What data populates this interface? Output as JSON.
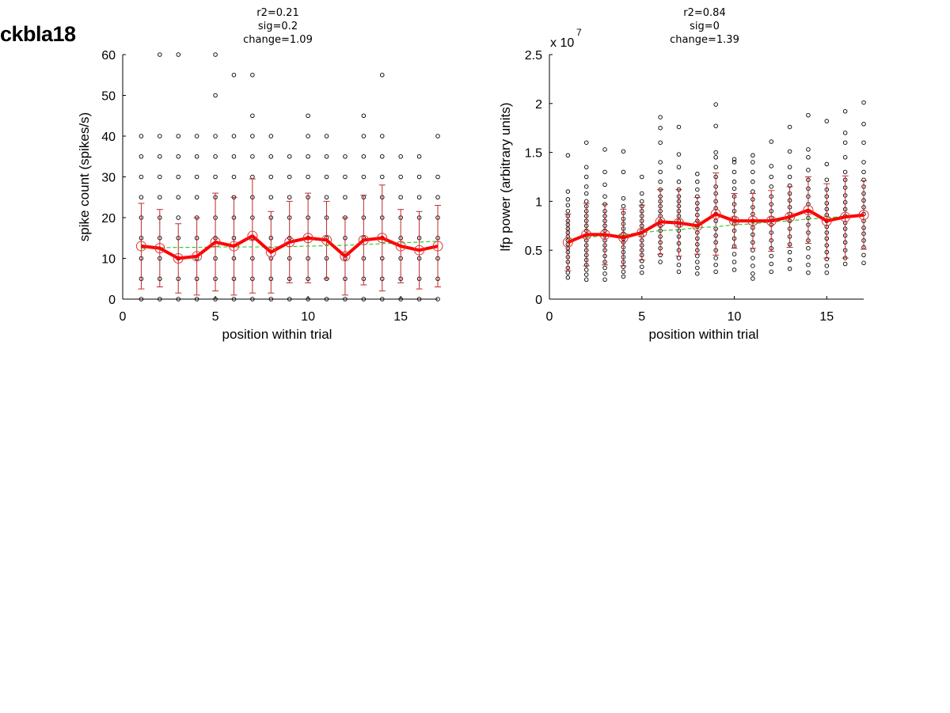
{
  "page_title": "ckbla18",
  "chart_data": [
    {
      "type": "scatter",
      "title_lines": [
        "r2=0.21",
        "sig=0.2",
        "change=1.09"
      ],
      "xlabel": "position within trial",
      "ylabel": "spike count (spikes/s)",
      "xlim": [
        0,
        17
      ],
      "ylim": [
        0,
        60
      ],
      "xticks": [
        0,
        5,
        10,
        15
      ],
      "yticks": [
        0,
        10,
        20,
        30,
        40,
        50,
        60
      ],
      "ytick_labels": [
        "0",
        "10",
        "20",
        "30",
        "40",
        "50",
        "60"
      ],
      "exponent_label": "",
      "raw_points": [
        {
          "x": 1,
          "y": [
            0,
            5,
            10,
            15,
            20,
            25,
            30,
            35,
            40
          ]
        },
        {
          "x": 2,
          "y": [
            0,
            5,
            10,
            15,
            20,
            25,
            30,
            35,
            40,
            60
          ]
        },
        {
          "x": 3,
          "y": [
            0,
            5,
            10,
            15,
            20,
            25,
            30,
            35,
            40,
            60
          ]
        },
        {
          "x": 4,
          "y": [
            0,
            5,
            10,
            15,
            20,
            25,
            30,
            35,
            40
          ]
        },
        {
          "x": 5,
          "y": [
            0,
            5,
            10,
            15,
            20,
            25,
            30,
            35,
            40,
            50,
            60
          ]
        },
        {
          "x": 6,
          "y": [
            0,
            5,
            10,
            15,
            20,
            25,
            30,
            35,
            40,
            55
          ]
        },
        {
          "x": 7,
          "y": [
            0,
            5,
            10,
            15,
            20,
            25,
            30,
            35,
            40,
            45,
            55
          ]
        },
        {
          "x": 8,
          "y": [
            0,
            5,
            10,
            15,
            20,
            25,
            30,
            35,
            40
          ]
        },
        {
          "x": 9,
          "y": [
            0,
            5,
            10,
            15,
            20,
            25,
            30,
            35
          ]
        },
        {
          "x": 10,
          "y": [
            0,
            5,
            10,
            15,
            20,
            25,
            30,
            35,
            40,
            45
          ]
        },
        {
          "x": 11,
          "y": [
            0,
            5,
            10,
            15,
            20,
            25,
            30,
            35,
            40
          ]
        },
        {
          "x": 12,
          "y": [
            0,
            5,
            10,
            15,
            20,
            25,
            30,
            35
          ]
        },
        {
          "x": 13,
          "y": [
            0,
            5,
            10,
            15,
            20,
            25,
            30,
            35,
            40,
            45
          ]
        },
        {
          "x": 14,
          "y": [
            0,
            5,
            10,
            15,
            20,
            25,
            30,
            35,
            40,
            55
          ]
        },
        {
          "x": 15,
          "y": [
            0,
            5,
            10,
            15,
            20,
            25,
            30,
            35
          ]
        },
        {
          "x": 16,
          "y": [
            0,
            5,
            10,
            15,
            20,
            25,
            30,
            35
          ]
        },
        {
          "x": 17,
          "y": [
            0,
            5,
            10,
            15,
            20,
            25,
            30,
            40
          ]
        }
      ],
      "means": [
        13,
        12.5,
        10,
        10.5,
        14,
        13,
        15.5,
        11.5,
        14,
        15,
        14.5,
        10.5,
        14.5,
        15,
        13,
        12,
        13
      ],
      "errors": [
        10.5,
        9.5,
        8.5,
        9.5,
        12,
        12,
        14,
        10,
        10,
        11,
        9.5,
        9.5,
        11,
        13,
        9,
        9.5,
        10
      ],
      "fit": [
        12.5,
        12.6,
        12.7,
        12.7,
        12.8,
        12.8,
        12.8,
        12.8,
        12.9,
        13,
        13.1,
        13.2,
        13.4,
        13.6,
        13.8,
        14,
        14.2
      ],
      "colors": {
        "points": "#000000",
        "mean_line": "#ff0000",
        "mean_marker": "#dd3333",
        "errorbar": "#c0282a",
        "fit": "#33cc33"
      }
    },
    {
      "type": "scatter",
      "title_lines": [
        "r2=0.84",
        "sig=0",
        "change=1.39"
      ],
      "xlabel": "position within trial",
      "ylabel": "lfp power (arbitrary units)",
      "xlim": [
        0,
        17
      ],
      "ylim": [
        0,
        2.5
      ],
      "xticks": [
        0,
        5,
        10,
        15
      ],
      "yticks": [
        0,
        0.5,
        1,
        1.5,
        2,
        2.5
      ],
      "ytick_labels": [
        "0",
        "0.5",
        "1",
        "1.5",
        "2",
        "2.5"
      ],
      "exponent_label": "x 10",
      "exponent_sup": "7",
      "raw_points": [
        {
          "x": 1,
          "y": [
            0.22,
            0.27,
            0.32,
            0.38,
            0.43,
            0.48,
            0.52,
            0.56,
            0.6,
            0.64,
            0.68,
            0.72,
            0.76,
            0.8,
            0.85,
            0.9,
            0.96,
            1.02,
            1.1,
            1.47
          ]
        },
        {
          "x": 2,
          "y": [
            0.2,
            0.25,
            0.3,
            0.35,
            0.4,
            0.45,
            0.5,
            0.55,
            0.6,
            0.65,
            0.7,
            0.75,
            0.8,
            0.85,
            0.9,
            0.95,
            1.0,
            1.08,
            1.15,
            1.25,
            1.35,
            1.6
          ]
        },
        {
          "x": 3,
          "y": [
            0.2,
            0.26,
            0.32,
            0.38,
            0.44,
            0.5,
            0.55,
            0.6,
            0.65,
            0.7,
            0.75,
            0.8,
            0.85,
            0.9,
            0.97,
            1.05,
            1.17,
            1.3,
            1.53
          ]
        },
        {
          "x": 4,
          "y": [
            0.23,
            0.28,
            0.33,
            0.38,
            0.43,
            0.48,
            0.53,
            0.58,
            0.62,
            0.67,
            0.72,
            0.77,
            0.82,
            0.88,
            0.95,
            1.03,
            1.3,
            1.51
          ]
        },
        {
          "x": 5,
          "y": [
            0.27,
            0.33,
            0.39,
            0.45,
            0.5,
            0.55,
            0.6,
            0.65,
            0.7,
            0.75,
            0.8,
            0.85,
            0.9,
            0.95,
            1.0,
            1.08,
            1.25
          ]
        },
        {
          "x": 6,
          "y": [
            0.38,
            0.45,
            0.52,
            0.58,
            0.64,
            0.7,
            0.75,
            0.8,
            0.85,
            0.9,
            0.95,
            1.0,
            1.05,
            1.12,
            1.2,
            1.3,
            1.4,
            1.6,
            1.75,
            1.86
          ]
        },
        {
          "x": 7,
          "y": [
            0.28,
            0.35,
            0.42,
            0.5,
            0.57,
            0.64,
            0.7,
            0.75,
            0.8,
            0.85,
            0.9,
            0.95,
            1.0,
            1.05,
            1.12,
            1.2,
            1.35,
            1.48,
            1.76
          ]
        },
        {
          "x": 8,
          "y": [
            0.26,
            0.32,
            0.38,
            0.44,
            0.5,
            0.56,
            0.62,
            0.68,
            0.74,
            0.8,
            0.86,
            0.92,
            0.98,
            1.05,
            1.12,
            1.2,
            1.28
          ]
        },
        {
          "x": 9,
          "y": [
            0.28,
            0.35,
            0.42,
            0.5,
            0.58,
            0.65,
            0.72,
            0.8,
            0.87,
            0.93,
            1.0,
            1.08,
            1.15,
            1.25,
            1.35,
            1.45,
            1.5,
            1.77,
            1.99
          ]
        },
        {
          "x": 10,
          "y": [
            0.3,
            0.38,
            0.46,
            0.54,
            0.62,
            0.7,
            0.77,
            0.83,
            0.9,
            0.97,
            1.05,
            1.13,
            1.2,
            1.3,
            1.4,
            1.43
          ]
        },
        {
          "x": 11,
          "y": [
            0.21,
            0.26,
            0.34,
            0.42,
            0.5,
            0.58,
            0.66,
            0.73,
            0.8,
            0.87,
            0.94,
            1.02,
            1.1,
            1.2,
            1.3,
            1.4,
            1.47
          ]
        },
        {
          "x": 12,
          "y": [
            0.28,
            0.36,
            0.44,
            0.52,
            0.6,
            0.68,
            0.76,
            0.83,
            0.9,
            0.97,
            1.05,
            1.15,
            1.25,
            1.36,
            1.61
          ]
        },
        {
          "x": 13,
          "y": [
            0.31,
            0.4,
            0.48,
            0.56,
            0.64,
            0.72,
            0.8,
            0.87,
            0.94,
            1.01,
            1.08,
            1.16,
            1.25,
            1.35,
            1.51,
            1.76
          ]
        },
        {
          "x": 14,
          "y": [
            0.27,
            0.35,
            0.43,
            0.52,
            0.6,
            0.68,
            0.76,
            0.83,
            0.9,
            0.97,
            1.05,
            1.13,
            1.22,
            1.32,
            1.45,
            1.53,
            1.88
          ]
        },
        {
          "x": 15,
          "y": [
            0.27,
            0.34,
            0.41,
            0.48,
            0.55,
            0.62,
            0.68,
            0.74,
            0.8,
            0.86,
            0.92,
            0.98,
            1.05,
            1.12,
            1.22,
            1.38,
            1.82
          ]
        },
        {
          "x": 16,
          "y": [
            0.36,
            0.42,
            0.5,
            0.58,
            0.65,
            0.72,
            0.78,
            0.85,
            0.92,
            0.99,
            1.06,
            1.14,
            1.22,
            1.3,
            1.45,
            1.6,
            1.7,
            1.92
          ]
        },
        {
          "x": 17,
          "y": [
            0.37,
            0.45,
            0.53,
            0.6,
            0.67,
            0.73,
            0.8,
            0.87,
            0.94,
            1.01,
            1.08,
            1.15,
            1.22,
            1.3,
            1.4,
            1.6,
            1.79,
            2.01
          ]
        }
      ],
      "means": [
        0.58,
        0.66,
        0.66,
        0.63,
        0.68,
        0.79,
        0.78,
        0.75,
        0.87,
        0.8,
        0.8,
        0.8,
        0.84,
        0.91,
        0.8,
        0.84,
        0.86
      ],
      "errors": [
        0.29,
        0.32,
        0.31,
        0.29,
        0.28,
        0.33,
        0.34,
        0.29,
        0.42,
        0.28,
        0.28,
        0.31,
        0.31,
        0.34,
        0.38,
        0.42,
        0.35
      ],
      "fit": [
        0.62,
        0.63,
        0.65,
        0.66,
        0.68,
        0.7,
        0.71,
        0.73,
        0.74,
        0.76,
        0.77,
        0.79,
        0.8,
        0.82,
        0.83,
        0.85,
        0.86
      ],
      "colors": {
        "points": "#000000",
        "mean_line": "#ff0000",
        "mean_marker": "#dd3333",
        "errorbar": "#c0282a",
        "fit": "#33cc33"
      }
    }
  ]
}
